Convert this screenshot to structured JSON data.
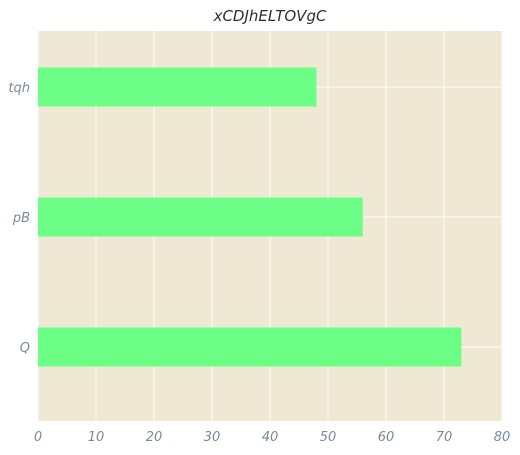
{
  "chart_data": {
    "type": "bar",
    "orientation": "horizontal",
    "title": "xCDJhELTOVgC",
    "xlabel": "",
    "ylabel": "",
    "categories": [
      "tqh",
      "pB",
      "Q"
    ],
    "values": [
      48,
      56,
      73
    ],
    "xlim": [
      0,
      80
    ],
    "xticks": [
      "0",
      "10",
      "20",
      "30",
      "40",
      "50",
      "60",
      "70",
      "80"
    ],
    "grid": true,
    "colors": {
      "bar": "#6bff86",
      "plot_background": "#efe8d5",
      "grid": "#ffffff",
      "title": "#2e2e2e",
      "tick_labels": "#7b8a99"
    }
  }
}
